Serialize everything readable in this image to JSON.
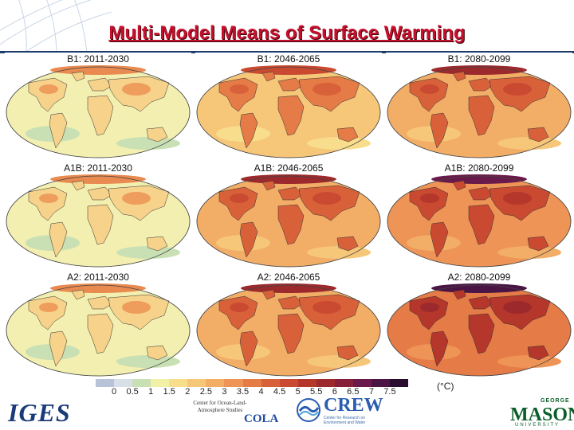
{
  "slide": {
    "title": "Multi-Model Means of Surface Warming"
  },
  "panels": [
    {
      "label": "B1: 2011-2030",
      "intensity": 0
    },
    {
      "label": "B1: 2046-2065",
      "intensity": 1
    },
    {
      "label": "B1: 2080-2099",
      "intensity": 2
    },
    {
      "label": "A1B: 2011-2030",
      "intensity": 0
    },
    {
      "label": "A1B: 2046-2065",
      "intensity": 2
    },
    {
      "label": "A1B: 2080-2099",
      "intensity": 3
    },
    {
      "label": "A2: 2011-2030",
      "intensity": 0
    },
    {
      "label": "A2: 2046-2065",
      "intensity": 2
    },
    {
      "label": "A2: 2080-2099",
      "intensity": 4
    }
  ],
  "colorbar": {
    "ticks": [
      "0",
      "0.5",
      "1",
      "1.5",
      "2",
      "2.5",
      "3",
      "3.5",
      "4",
      "4.5",
      "5",
      "5.5",
      "6",
      "6.5",
      "7",
      "7.5"
    ],
    "unit": "(°C)",
    "colors": [
      "#b8c2d8",
      "#d8dfe6",
      "#c9e0b4",
      "#f3f0a8",
      "#f8dd8c",
      "#f6c679",
      "#f2ad66",
      "#ee9456",
      "#e57b46",
      "#d9613a",
      "#c94a31",
      "#b5362b",
      "#9c2a2d",
      "#86203a",
      "#6a1a4a",
      "#4a1444",
      "#2a0c2e"
    ]
  },
  "logos": {
    "iges": "IGES",
    "cola_text": "Center for Ocean-Land-Atmosphere Studies",
    "cola": "COLA",
    "crew": "CREW",
    "crew_sub": "Center for Research on Environment and Water",
    "gmu_george": "GEORGE",
    "gmu_mason": "MASON",
    "gmu_university": "UNIVERSITY"
  }
}
